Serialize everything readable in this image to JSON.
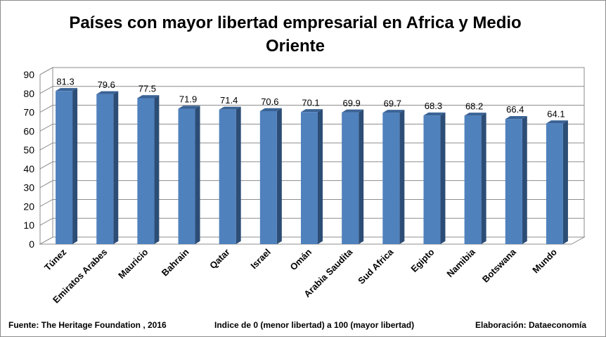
{
  "chart_data": {
    "type": "bar",
    "title_line1": "Países con mayor libertad empresarial en Africa y Medio",
    "title_line2": "Oriente",
    "categories": [
      "Túnez",
      "Emiratos Arabes",
      "Mauricio",
      "Bahrain",
      "Qatar",
      "Israel",
      "Omán",
      "Arabia Saudita",
      "Sud Africa",
      "Egipto",
      "Namibia",
      "Botswana",
      "Mundo"
    ],
    "values": [
      81.3,
      79.6,
      77.5,
      71.9,
      71.4,
      70.6,
      70.1,
      69.9,
      69.7,
      68.3,
      68.2,
      66.4,
      64.1
    ],
    "value_labels": [
      "81.3",
      "79.6",
      "77.5",
      "71.9",
      "71.4",
      "70.6",
      "70.1",
      "69.9",
      "69.7",
      "68.3",
      "68.2",
      "66.4",
      "64.1"
    ],
    "ylim": [
      0,
      90
    ],
    "yticks": [
      "0",
      "10",
      "20",
      "30",
      "40",
      "50",
      "60",
      "70",
      "80",
      "90"
    ],
    "grid": true,
    "legend": "none",
    "style": "3d-columns",
    "colors": {
      "bar_front": "#4f81bd",
      "bar_side": "#2c4d75",
      "bar_top": "#3a6395",
      "gridline": "#8c8c8c",
      "text": "#000000"
    }
  },
  "footer": {
    "source": "Fuente: The Heritage Foundation , 2016",
    "note": "Indice de 0 (menor libertad) a 100  (mayor libertad)",
    "credit": "Elaboración: Dataeconomía"
  }
}
